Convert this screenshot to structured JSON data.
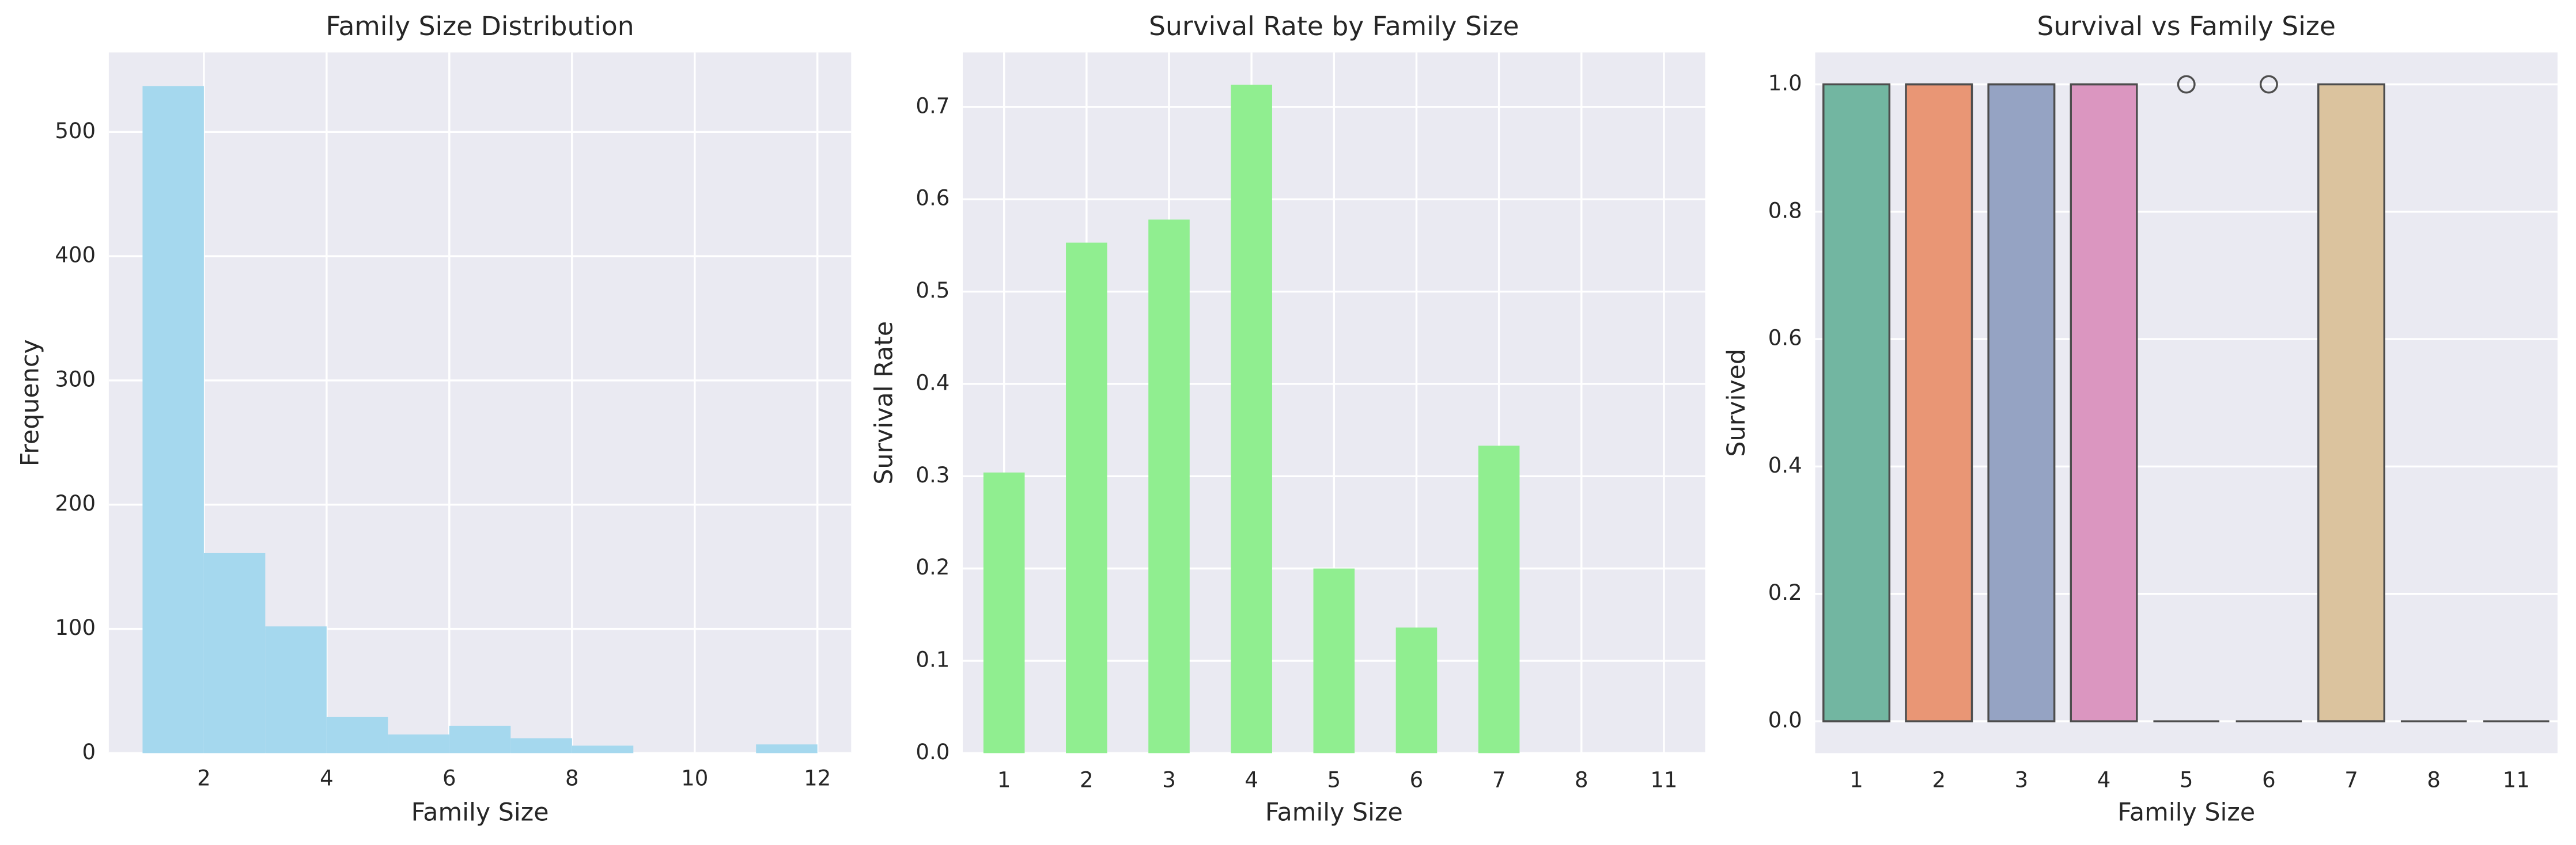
{
  "chart_data": [
    {
      "type": "histogram",
      "title": "Family Size Distribution",
      "xlabel": "Family Size",
      "ylabel": "Frequency",
      "bins": [
        1,
        2,
        3,
        4,
        5,
        6,
        7,
        8,
        9,
        10,
        11,
        12
      ],
      "counts": [
        537,
        161,
        102,
        29,
        15,
        22,
        12,
        6,
        0,
        0,
        7
      ],
      "color": "#a5d8ee",
      "xlim": [
        0.45,
        12.55
      ],
      "xticks": [
        2,
        4,
        6,
        8,
        10,
        12
      ],
      "ylim": [
        0,
        564
      ],
      "yticks": [
        0,
        100,
        200,
        300,
        400,
        500
      ],
      "grid": "both"
    },
    {
      "type": "bar",
      "title": "Survival Rate by Family Size",
      "xlabel": "Family Size",
      "ylabel": "Survival Rate",
      "categories": [
        "1",
        "2",
        "3",
        "4",
        "5",
        "6",
        "7",
        "8",
        "11"
      ],
      "values": [
        0.304,
        0.553,
        0.578,
        0.724,
        0.2,
        0.136,
        0.333,
        0,
        0
      ],
      "color": "#90ee90",
      "ylim": [
        0,
        0.759
      ],
      "yticks": [
        {
          "value": 0,
          "label": "0.0"
        },
        0.1,
        0.2,
        0.3,
        0.4,
        0.5,
        0.6,
        0.7
      ],
      "grid": "both"
    },
    {
      "type": "box",
      "title": "Survival vs Family Size",
      "xlabel": "Family Size",
      "ylabel": "Survived",
      "categories": [
        "1",
        "2",
        "3",
        "4",
        "5",
        "6",
        "7",
        "8",
        "11"
      ],
      "boxes": [
        {
          "q1": 0,
          "median": 0,
          "q3": 1,
          "whislo": 0,
          "whishi": 1,
          "fliers": [],
          "color": "#72b6a1"
        },
        {
          "q1": 0,
          "median": 1,
          "q3": 1,
          "whislo": 0,
          "whishi": 1,
          "fliers": [],
          "color": "#e99675"
        },
        {
          "q1": 0,
          "median": 1,
          "q3": 1,
          "whislo": 0,
          "whishi": 1,
          "fliers": [],
          "color": "#95a3c3"
        },
        {
          "q1": 0,
          "median": 1,
          "q3": 1,
          "whislo": 0,
          "whishi": 1,
          "fliers": [],
          "color": "#db96c0"
        },
        {
          "q1": 0,
          "median": 0,
          "q3": 0,
          "whislo": 0,
          "whishi": 0,
          "fliers": [
            1
          ],
          "color": "#a9c98a"
        },
        {
          "q1": 0,
          "median": 0,
          "q3": 0,
          "whislo": 0,
          "whishi": 0,
          "fliers": [
            1
          ],
          "color": "#dcc86e"
        },
        {
          "q1": 0,
          "median": 0,
          "q3": 1,
          "whislo": 0,
          "whishi": 1,
          "fliers": [],
          "color": "#dbc39e"
        },
        {
          "q1": 0,
          "median": 0,
          "q3": 0,
          "whislo": 0,
          "whishi": 0,
          "fliers": [],
          "color": "#b3b3b3"
        },
        {
          "q1": 0,
          "median": 0,
          "q3": 0,
          "whislo": 0,
          "whishi": 0,
          "fliers": [],
          "color": "#b3b3b3"
        }
      ],
      "ylim": [
        -0.05,
        1.05
      ],
      "yticks": [
        {
          "value": 0,
          "label": "0.0"
        },
        0.2,
        0.4,
        0.6,
        0.8,
        {
          "value": 1,
          "label": "1.0"
        }
      ],
      "grid": "y"
    }
  ]
}
